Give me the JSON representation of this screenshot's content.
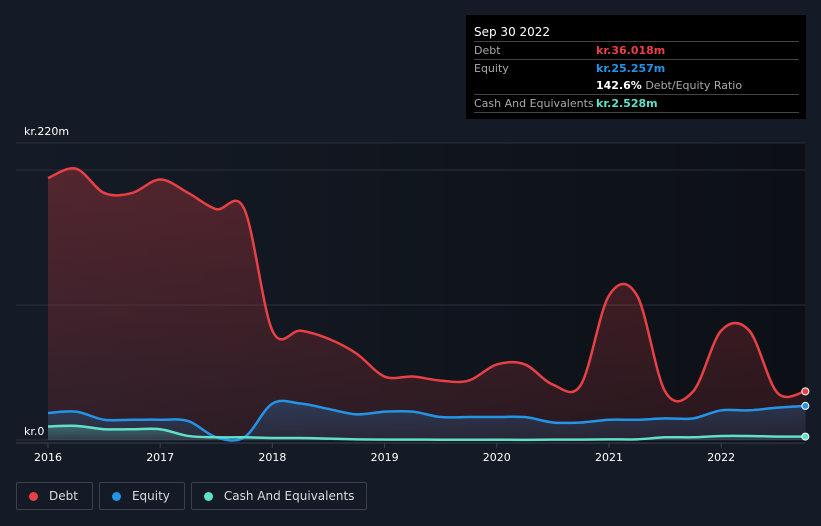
{
  "chart_data": {
    "type": "area",
    "ylabel_top": "kr.220m",
    "ylabel_bottom": "kr.0",
    "ylim": [
      0,
      220
    ],
    "x_ticks": [
      "2016",
      "2017",
      "2018",
      "2019",
      "2020",
      "2021",
      "2022"
    ],
    "x": [
      2016,
      2016.25,
      2016.5,
      2016.75,
      2017,
      2017.25,
      2017.5,
      2017.75,
      2018,
      2018.25,
      2018.5,
      2018.75,
      2019,
      2019.25,
      2019.5,
      2019.75,
      2020,
      2020.25,
      2020.5,
      2020.75,
      2021,
      2021.25,
      2021.5,
      2021.75,
      2022,
      2022.25,
      2022.5,
      2022.75
    ],
    "series": [
      {
        "name": "Debt",
        "color": "#e84045",
        "values": [
          194,
          201,
          183,
          183,
          193,
          183,
          171,
          171,
          81,
          81,
          75,
          64,
          47,
          47,
          44,
          44,
          56,
          56,
          41,
          41,
          107,
          107,
          36,
          36,
          81,
          81,
          35,
          36.018
        ]
      },
      {
        "name": "Equity",
        "color": "#2394e8",
        "values": [
          20,
          21,
          15,
          15,
          15,
          14,
          2,
          2,
          27,
          27,
          23,
          19,
          21,
          21,
          17,
          17,
          17,
          17,
          13,
          13,
          15,
          15,
          16,
          16,
          22,
          22,
          24,
          25.257
        ]
      },
      {
        "name": "Cash And Equivalents",
        "color": "#5ee0c9",
        "values": [
          10,
          10.5,
          8,
          8,
          8,
          3,
          2,
          2,
          1.5,
          1.5,
          1,
          0.5,
          0.3,
          0.3,
          0.2,
          0.2,
          0.2,
          0.1,
          0.3,
          0.3,
          0.5,
          0.5,
          2,
          2,
          3,
          3,
          2.5,
          2.528
        ]
      }
    ]
  },
  "tooltip": {
    "date": "Sep 30 2022",
    "debt_label": "Debt",
    "debt_value": "kr.36.018m",
    "equity_label": "Equity",
    "equity_value": "kr.25.257m",
    "ratio_value": "142.6%",
    "ratio_label": "Debt/Equity Ratio",
    "cash_label": "Cash And Equivalents",
    "cash_value": "kr.2.528m"
  },
  "legend": [
    "Debt",
    "Equity",
    "Cash And Equivalents"
  ]
}
